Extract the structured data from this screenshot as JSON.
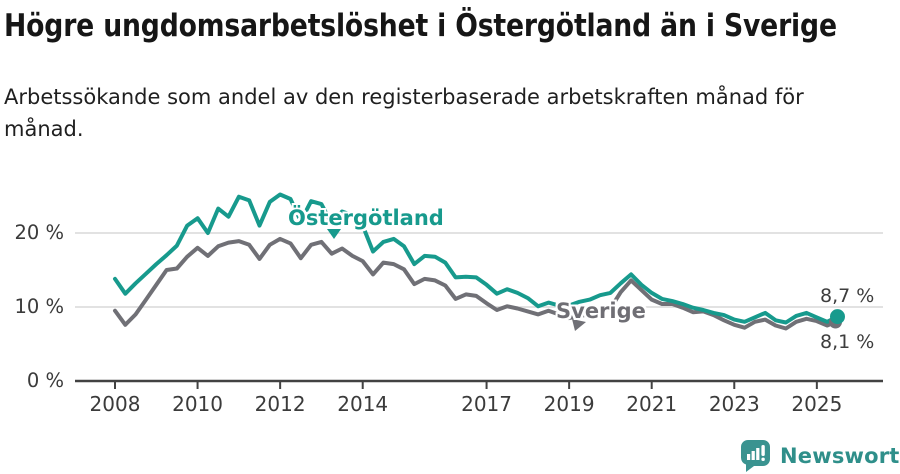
{
  "header": {
    "title": "Högre ungdomsarbetslöshet i Östergötland än i Sverige",
    "subtitle": "Arbetssökande som andel av den registerbaserade arbetskraften månad för månad."
  },
  "chart_data": {
    "type": "line",
    "unit": "percent of registered labour force",
    "grid": "horizontal",
    "x_axis": {
      "ticks": [
        2008,
        2010,
        2012,
        2014,
        2017,
        2019,
        2021,
        2023,
        2025
      ],
      "range": [
        2008,
        2025.6
      ]
    },
    "y_axis": {
      "ticks": [
        {
          "value": 0,
          "label": "0 %"
        },
        {
          "value": 10,
          "label": "10 %"
        },
        {
          "value": 20,
          "label": "20 %"
        }
      ],
      "range": [
        0,
        27
      ]
    },
    "series": [
      {
        "name": "Östergötland",
        "color": "#179a8d",
        "last_value_label": "8,7 %",
        "points": [
          [
            2008.0,
            13.8
          ],
          [
            2008.25,
            11.8
          ],
          [
            2008.5,
            13.2
          ],
          [
            2008.75,
            14.5
          ],
          [
            2009.0,
            15.8
          ],
          [
            2009.25,
            17.0
          ],
          [
            2009.5,
            18.3
          ],
          [
            2009.75,
            21.0
          ],
          [
            2010.0,
            22.0
          ],
          [
            2010.25,
            20.0
          ],
          [
            2010.5,
            23.3
          ],
          [
            2010.75,
            22.2
          ],
          [
            2011.0,
            24.9
          ],
          [
            2011.25,
            24.4
          ],
          [
            2011.5,
            21.0
          ],
          [
            2011.75,
            24.2
          ],
          [
            2012.0,
            25.2
          ],
          [
            2012.25,
            24.6
          ],
          [
            2012.5,
            21.6
          ],
          [
            2012.75,
            24.3
          ],
          [
            2013.0,
            23.9
          ],
          [
            2013.25,
            21.3
          ],
          [
            2013.5,
            22.9
          ],
          [
            2013.75,
            22.4
          ],
          [
            2014.0,
            21.0
          ],
          [
            2014.25,
            17.5
          ],
          [
            2014.5,
            18.8
          ],
          [
            2014.75,
            19.2
          ],
          [
            2015.0,
            18.2
          ],
          [
            2015.25,
            15.8
          ],
          [
            2015.5,
            16.9
          ],
          [
            2015.75,
            16.8
          ],
          [
            2016.0,
            16.0
          ],
          [
            2016.25,
            14.0
          ],
          [
            2016.5,
            14.1
          ],
          [
            2016.75,
            14.0
          ],
          [
            2017.0,
            13.0
          ],
          [
            2017.25,
            11.8
          ],
          [
            2017.5,
            12.4
          ],
          [
            2017.75,
            11.9
          ],
          [
            2018.0,
            11.2
          ],
          [
            2018.25,
            10.1
          ],
          [
            2018.5,
            10.6
          ],
          [
            2018.75,
            10.2
          ],
          [
            2019.0,
            10.2
          ],
          [
            2019.25,
            10.7
          ],
          [
            2019.5,
            11.0
          ],
          [
            2019.75,
            11.6
          ],
          [
            2020.0,
            11.9
          ],
          [
            2020.25,
            13.2
          ],
          [
            2020.5,
            14.4
          ],
          [
            2020.75,
            13.0
          ],
          [
            2021.0,
            11.9
          ],
          [
            2021.25,
            11.1
          ],
          [
            2021.5,
            10.8
          ],
          [
            2021.75,
            10.4
          ],
          [
            2022.0,
            9.9
          ],
          [
            2022.25,
            9.6
          ],
          [
            2022.5,
            9.2
          ],
          [
            2022.75,
            8.9
          ],
          [
            2023.0,
            8.3
          ],
          [
            2023.25,
            8.0
          ],
          [
            2023.5,
            8.6
          ],
          [
            2023.75,
            9.2
          ],
          [
            2024.0,
            8.2
          ],
          [
            2024.25,
            7.9
          ],
          [
            2024.5,
            8.8
          ],
          [
            2024.75,
            9.2
          ],
          [
            2025.0,
            8.6
          ],
          [
            2025.25,
            8.0
          ],
          [
            2025.5,
            8.7
          ]
        ]
      },
      {
        "name": "Sverige",
        "color": "#707076",
        "last_value_label": "8,1 %",
        "points": [
          [
            2008.0,
            9.5
          ],
          [
            2008.25,
            7.6
          ],
          [
            2008.5,
            9.0
          ],
          [
            2008.75,
            11.0
          ],
          [
            2009.0,
            13.0
          ],
          [
            2009.25,
            15.0
          ],
          [
            2009.5,
            15.2
          ],
          [
            2009.75,
            16.8
          ],
          [
            2010.0,
            18.0
          ],
          [
            2010.25,
            16.9
          ],
          [
            2010.5,
            18.2
          ],
          [
            2010.75,
            18.7
          ],
          [
            2011.0,
            18.9
          ],
          [
            2011.25,
            18.4
          ],
          [
            2011.5,
            16.5
          ],
          [
            2011.75,
            18.4
          ],
          [
            2012.0,
            19.2
          ],
          [
            2012.25,
            18.6
          ],
          [
            2012.5,
            16.6
          ],
          [
            2012.75,
            18.4
          ],
          [
            2013.0,
            18.8
          ],
          [
            2013.25,
            17.2
          ],
          [
            2013.5,
            17.9
          ],
          [
            2013.75,
            16.9
          ],
          [
            2014.0,
            16.2
          ],
          [
            2014.25,
            14.4
          ],
          [
            2014.5,
            16.0
          ],
          [
            2014.75,
            15.8
          ],
          [
            2015.0,
            15.1
          ],
          [
            2015.25,
            13.1
          ],
          [
            2015.5,
            13.8
          ],
          [
            2015.75,
            13.6
          ],
          [
            2016.0,
            12.9
          ],
          [
            2016.25,
            11.1
          ],
          [
            2016.5,
            11.7
          ],
          [
            2016.75,
            11.5
          ],
          [
            2017.0,
            10.5
          ],
          [
            2017.25,
            9.6
          ],
          [
            2017.5,
            10.1
          ],
          [
            2017.75,
            9.8
          ],
          [
            2018.0,
            9.4
          ],
          [
            2018.25,
            9.0
          ],
          [
            2018.5,
            9.5
          ],
          [
            2018.75,
            9.0
          ],
          [
            2019.0,
            8.5
          ],
          [
            2019.25,
            8.8
          ],
          [
            2019.5,
            9.0
          ],
          [
            2019.75,
            9.3
          ],
          [
            2020.0,
            9.8
          ],
          [
            2020.25,
            12.0
          ],
          [
            2020.5,
            13.6
          ],
          [
            2020.75,
            12.3
          ],
          [
            2021.0,
            11.0
          ],
          [
            2021.25,
            10.4
          ],
          [
            2021.5,
            10.4
          ],
          [
            2021.75,
            9.9
          ],
          [
            2022.0,
            9.3
          ],
          [
            2022.25,
            9.4
          ],
          [
            2022.5,
            8.9
          ],
          [
            2022.75,
            8.2
          ],
          [
            2023.0,
            7.6
          ],
          [
            2023.25,
            7.2
          ],
          [
            2023.5,
            8.0
          ],
          [
            2023.75,
            8.3
          ],
          [
            2024.0,
            7.5
          ],
          [
            2024.25,
            7.1
          ],
          [
            2024.5,
            8.0
          ],
          [
            2024.75,
            8.4
          ],
          [
            2025.0,
            8.1
          ],
          [
            2025.25,
            7.5
          ],
          [
            2025.5,
            8.1
          ]
        ]
      }
    ]
  },
  "footer": {
    "brand": "Newsworthy"
  },
  "colors": {
    "accent_teal": "#179a8d",
    "line_gray": "#707076",
    "gridline": "#d9d9d9",
    "axis": "#424242",
    "logo_teal": "#3a9390"
  }
}
